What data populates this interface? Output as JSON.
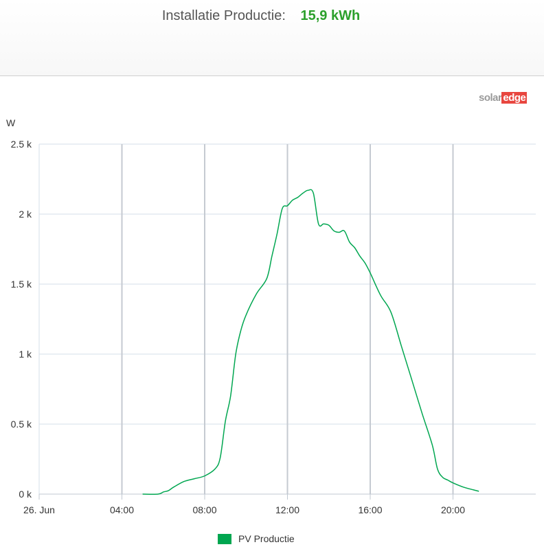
{
  "header": {
    "label": "Installatie Productie:",
    "value": "15,9 kWh"
  },
  "logo": {
    "part1": "solar",
    "part2": "edge"
  },
  "colors": {
    "series": "#00a650",
    "value": "#2ca02c",
    "grid": "#d6dfe9",
    "logo_accent": "#e8463f"
  },
  "chart_data": {
    "type": "line",
    "ylabel": "W",
    "ylim": [
      0,
      2500
    ],
    "xlim": [
      0,
      24
    ],
    "y_ticks": [
      {
        "value": 0,
        "label": "0 k"
      },
      {
        "value": 500,
        "label": "0.5 k"
      },
      {
        "value": 1000,
        "label": "1 k"
      },
      {
        "value": 1500,
        "label": "1.5 k"
      },
      {
        "value": 2000,
        "label": "2 k"
      },
      {
        "value": 2500,
        "label": "2.5 k"
      }
    ],
    "x_ticks": [
      {
        "value": 0,
        "label": "26. Jun"
      },
      {
        "value": 4,
        "label": "04:00"
      },
      {
        "value": 8,
        "label": "08:00"
      },
      {
        "value": 12,
        "label": "12:00"
      },
      {
        "value": 16,
        "label": "16:00"
      },
      {
        "value": 20,
        "label": "20:00"
      }
    ],
    "grid": true,
    "legend_position": "bottom",
    "series": [
      {
        "name": "PV Productie",
        "x": [
          5.0,
          5.75,
          6.0,
          6.25,
          6.5,
          7.0,
          7.5,
          8.0,
          8.5,
          8.75,
          9.0,
          9.25,
          9.5,
          9.75,
          10.0,
          10.5,
          11.0,
          11.25,
          11.5,
          11.75,
          12.0,
          12.25,
          12.5,
          12.75,
          13.0,
          13.25,
          13.5,
          13.75,
          14.0,
          14.25,
          14.5,
          14.75,
          15.0,
          15.25,
          15.5,
          15.75,
          16.0,
          16.5,
          17.0,
          17.5,
          18.0,
          18.5,
          19.0,
          19.25,
          19.5,
          19.75,
          20.0,
          20.5,
          21.0,
          21.25
        ],
        "y": [
          0,
          0,
          15,
          25,
          50,
          90,
          110,
          130,
          180,
          260,
          520,
          700,
          1000,
          1170,
          1280,
          1430,
          1540,
          1700,
          1860,
          2040,
          2060,
          2100,
          2120,
          2150,
          2170,
          2150,
          1930,
          1930,
          1920,
          1880,
          1870,
          1880,
          1800,
          1760,
          1700,
          1650,
          1580,
          1420,
          1300,
          1060,
          820,
          580,
          350,
          180,
          120,
          100,
          80,
          50,
          30,
          20
        ]
      }
    ]
  }
}
